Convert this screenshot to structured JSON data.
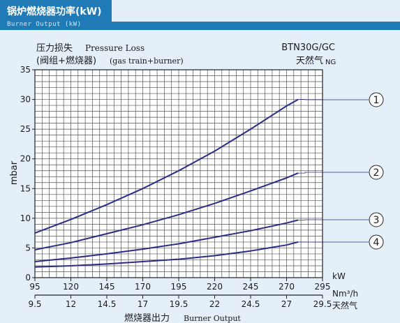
{
  "header": {
    "title": "锅炉燃烧器功率(kW)",
    "subtitle": "Burner Output (kW)",
    "color": "#1f7ab6"
  },
  "chart_data": {
    "type": "line",
    "title": "BTN30G/GC",
    "fuel_label_cn": "天然气",
    "fuel_label_en": "NG",
    "ylabel_cn_line1": "压力损失",
    "ylabel_en_line1": "Pressure Loss",
    "ylabel_cn_line2": "(阀组+燃烧器)",
    "ylabel_en_line2": "(gas train+burner)",
    "ylabel_unit": "mbar",
    "xlabel_cn": "燃烧器出力",
    "xlabel_en": "Burner Output",
    "x_unit": "kW",
    "x2_unit": "Nm³/h",
    "x2_fuel": "天然气",
    "xlim": [
      95,
      295
    ],
    "ylim": [
      0,
      35
    ],
    "x_ticks": [
      "95",
      "120",
      "145",
      "170",
      "195",
      "220",
      "245",
      "270",
      "295"
    ],
    "x2_ticks": [
      "9.5",
      "12",
      "14.5",
      "17",
      "19.5",
      "22",
      "24.5",
      "27",
      "29.5"
    ],
    "y_ticks": [
      "0",
      "5",
      "10",
      "15",
      "20",
      "25",
      "30",
      "35"
    ],
    "grid": true,
    "line_color": "#2b2d86",
    "series": [
      {
        "name": "1",
        "x": [
          95,
          120,
          145,
          170,
          195,
          220,
          245,
          270,
          278
        ],
        "y": [
          7.5,
          9.8,
          12.3,
          15.0,
          18.0,
          21.3,
          25.0,
          28.9,
          30.0
        ]
      },
      {
        "name": "2",
        "x": [
          95,
          120,
          145,
          170,
          195,
          220,
          245,
          270,
          278
        ],
        "y": [
          4.7,
          5.9,
          7.4,
          8.9,
          10.6,
          12.5,
          14.6,
          16.8,
          17.6
        ]
      },
      {
        "name": "3",
        "x": [
          95,
          120,
          145,
          170,
          195,
          220,
          245,
          270,
          278
        ],
        "y": [
          2.7,
          3.3,
          4.0,
          4.8,
          5.7,
          6.8,
          7.9,
          9.2,
          9.7
        ]
      },
      {
        "name": "4",
        "x": [
          95,
          120,
          145,
          170,
          195,
          220,
          245,
          270,
          278
        ],
        "y": [
          1.8,
          2.0,
          2.3,
          2.7,
          3.1,
          3.7,
          4.5,
          5.5,
          6.0
        ]
      }
    ]
  }
}
